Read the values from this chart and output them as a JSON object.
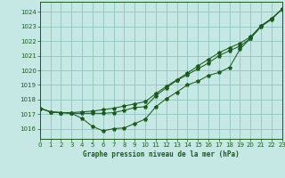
{
  "title": "Graphe pression niveau de la mer (hPa)",
  "background_color": "#c5e8e5",
  "grid_color": "#96c8c4",
  "line_color": "#1a5c1a",
  "x_ticks": [
    0,
    1,
    2,
    3,
    4,
    5,
    6,
    7,
    8,
    9,
    10,
    11,
    12,
    13,
    14,
    15,
    16,
    17,
    18,
    19,
    20,
    21,
    22,
    23
  ],
  "y_ticks": [
    1016,
    1017,
    1018,
    1019,
    1020,
    1021,
    1022,
    1023,
    1024
  ],
  "ylim": [
    1015.3,
    1024.7
  ],
  "xlim": [
    0,
    23
  ],
  "line_smooth": [
    1017.4,
    1017.15,
    1017.1,
    1017.1,
    1017.15,
    1017.2,
    1017.3,
    1017.4,
    1017.55,
    1017.7,
    1017.85,
    1018.4,
    1018.9,
    1019.35,
    1019.8,
    1020.3,
    1020.75,
    1021.2,
    1021.55,
    1021.85,
    1022.3,
    1023.05,
    1023.55,
    1024.2
  ],
  "line_mid": [
    1017.4,
    1017.15,
    1017.1,
    1017.05,
    1017.05,
    1017.05,
    1017.05,
    1017.1,
    1017.25,
    1017.45,
    1017.5,
    1018.25,
    1018.8,
    1019.3,
    1019.7,
    1020.1,
    1020.5,
    1021.0,
    1021.35,
    1021.65,
    1022.2,
    1023.0,
    1023.5,
    1024.2
  ],
  "line_dip": [
    1017.4,
    1017.15,
    1017.1,
    1017.05,
    1016.7,
    1016.15,
    1015.85,
    1016.0,
    1016.05,
    1016.35,
    1016.65,
    1017.5,
    1018.05,
    1018.5,
    1019.0,
    1019.25,
    1019.65,
    1019.85,
    1020.2,
    1021.45,
    1022.2,
    1023.05,
    1023.55,
    1024.2
  ]
}
